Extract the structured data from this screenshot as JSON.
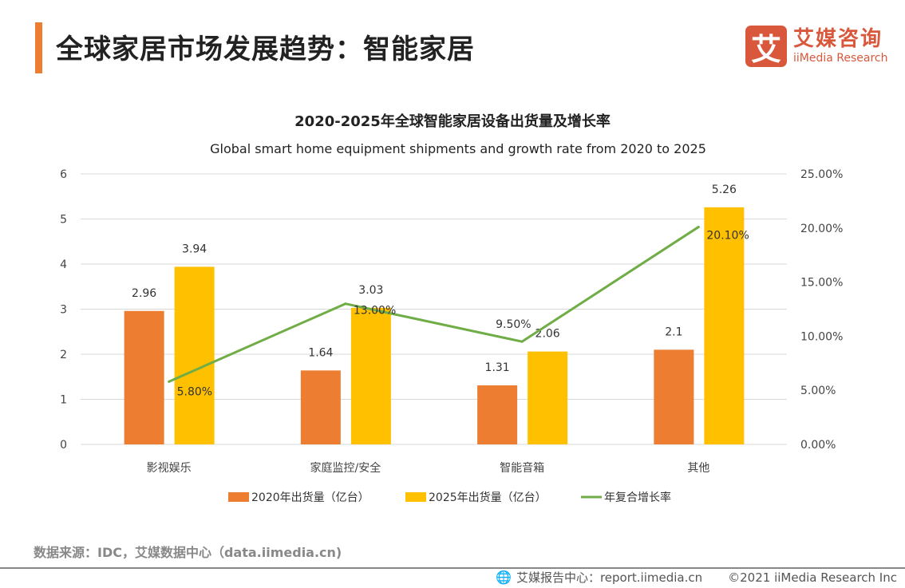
{
  "header": {
    "title": "全球家居市场发展趋势：智能家居"
  },
  "logo": {
    "mark": "艾",
    "cn": "艾媒咨询",
    "en": "iiMedia Research"
  },
  "chart_data": {
    "type": "bar",
    "title": "2020-2025年全球智能家居设备出货量及增长率",
    "subtitle": "Global smart home equipment shipments and growth rate from 2020 to 2025",
    "categories": [
      "影视娱乐",
      "家庭监控/安全",
      "智能音箱",
      "其他"
    ],
    "series": [
      {
        "name": "2020年出货量（亿台）",
        "type": "bar",
        "axis": "left",
        "color": "#ED7D31",
        "values": [
          2.96,
          1.64,
          1.31,
          2.1
        ],
        "labels": [
          "2.96",
          "1.64",
          "1.31",
          "2.1"
        ]
      },
      {
        "name": "2025年出货量（亿台）",
        "type": "bar",
        "axis": "left",
        "color": "#FFC000",
        "values": [
          3.94,
          3.03,
          2.06,
          5.26
        ],
        "labels": [
          "3.94",
          "3.03",
          "2.06",
          "5.26"
        ]
      },
      {
        "name": "年复合增长率",
        "type": "line",
        "axis": "right",
        "color": "#70AD47",
        "values": [
          5.8,
          13.0,
          9.5,
          20.1
        ],
        "labels": [
          "5.80%",
          "13.00%",
          "9.50%",
          "20.10%"
        ]
      }
    ],
    "left_axis": {
      "ylim": [
        0,
        6
      ],
      "ticks": [
        "0",
        "1",
        "2",
        "3",
        "4",
        "5",
        "6"
      ]
    },
    "right_axis": {
      "ylim": [
        0,
        25
      ],
      "ticks": [
        "0.00%",
        "5.00%",
        "10.00%",
        "15.00%",
        "20.00%",
        "25.00%"
      ]
    },
    "grid": true,
    "legend": "bottom"
  },
  "source": "数据来源：IDC，艾媒数据中心（data.iimedia.cn)",
  "footer": {
    "report": "艾媒报告中心：report.iimedia.cn",
    "copyright": "©2021  iiMedia Research  Inc"
  }
}
